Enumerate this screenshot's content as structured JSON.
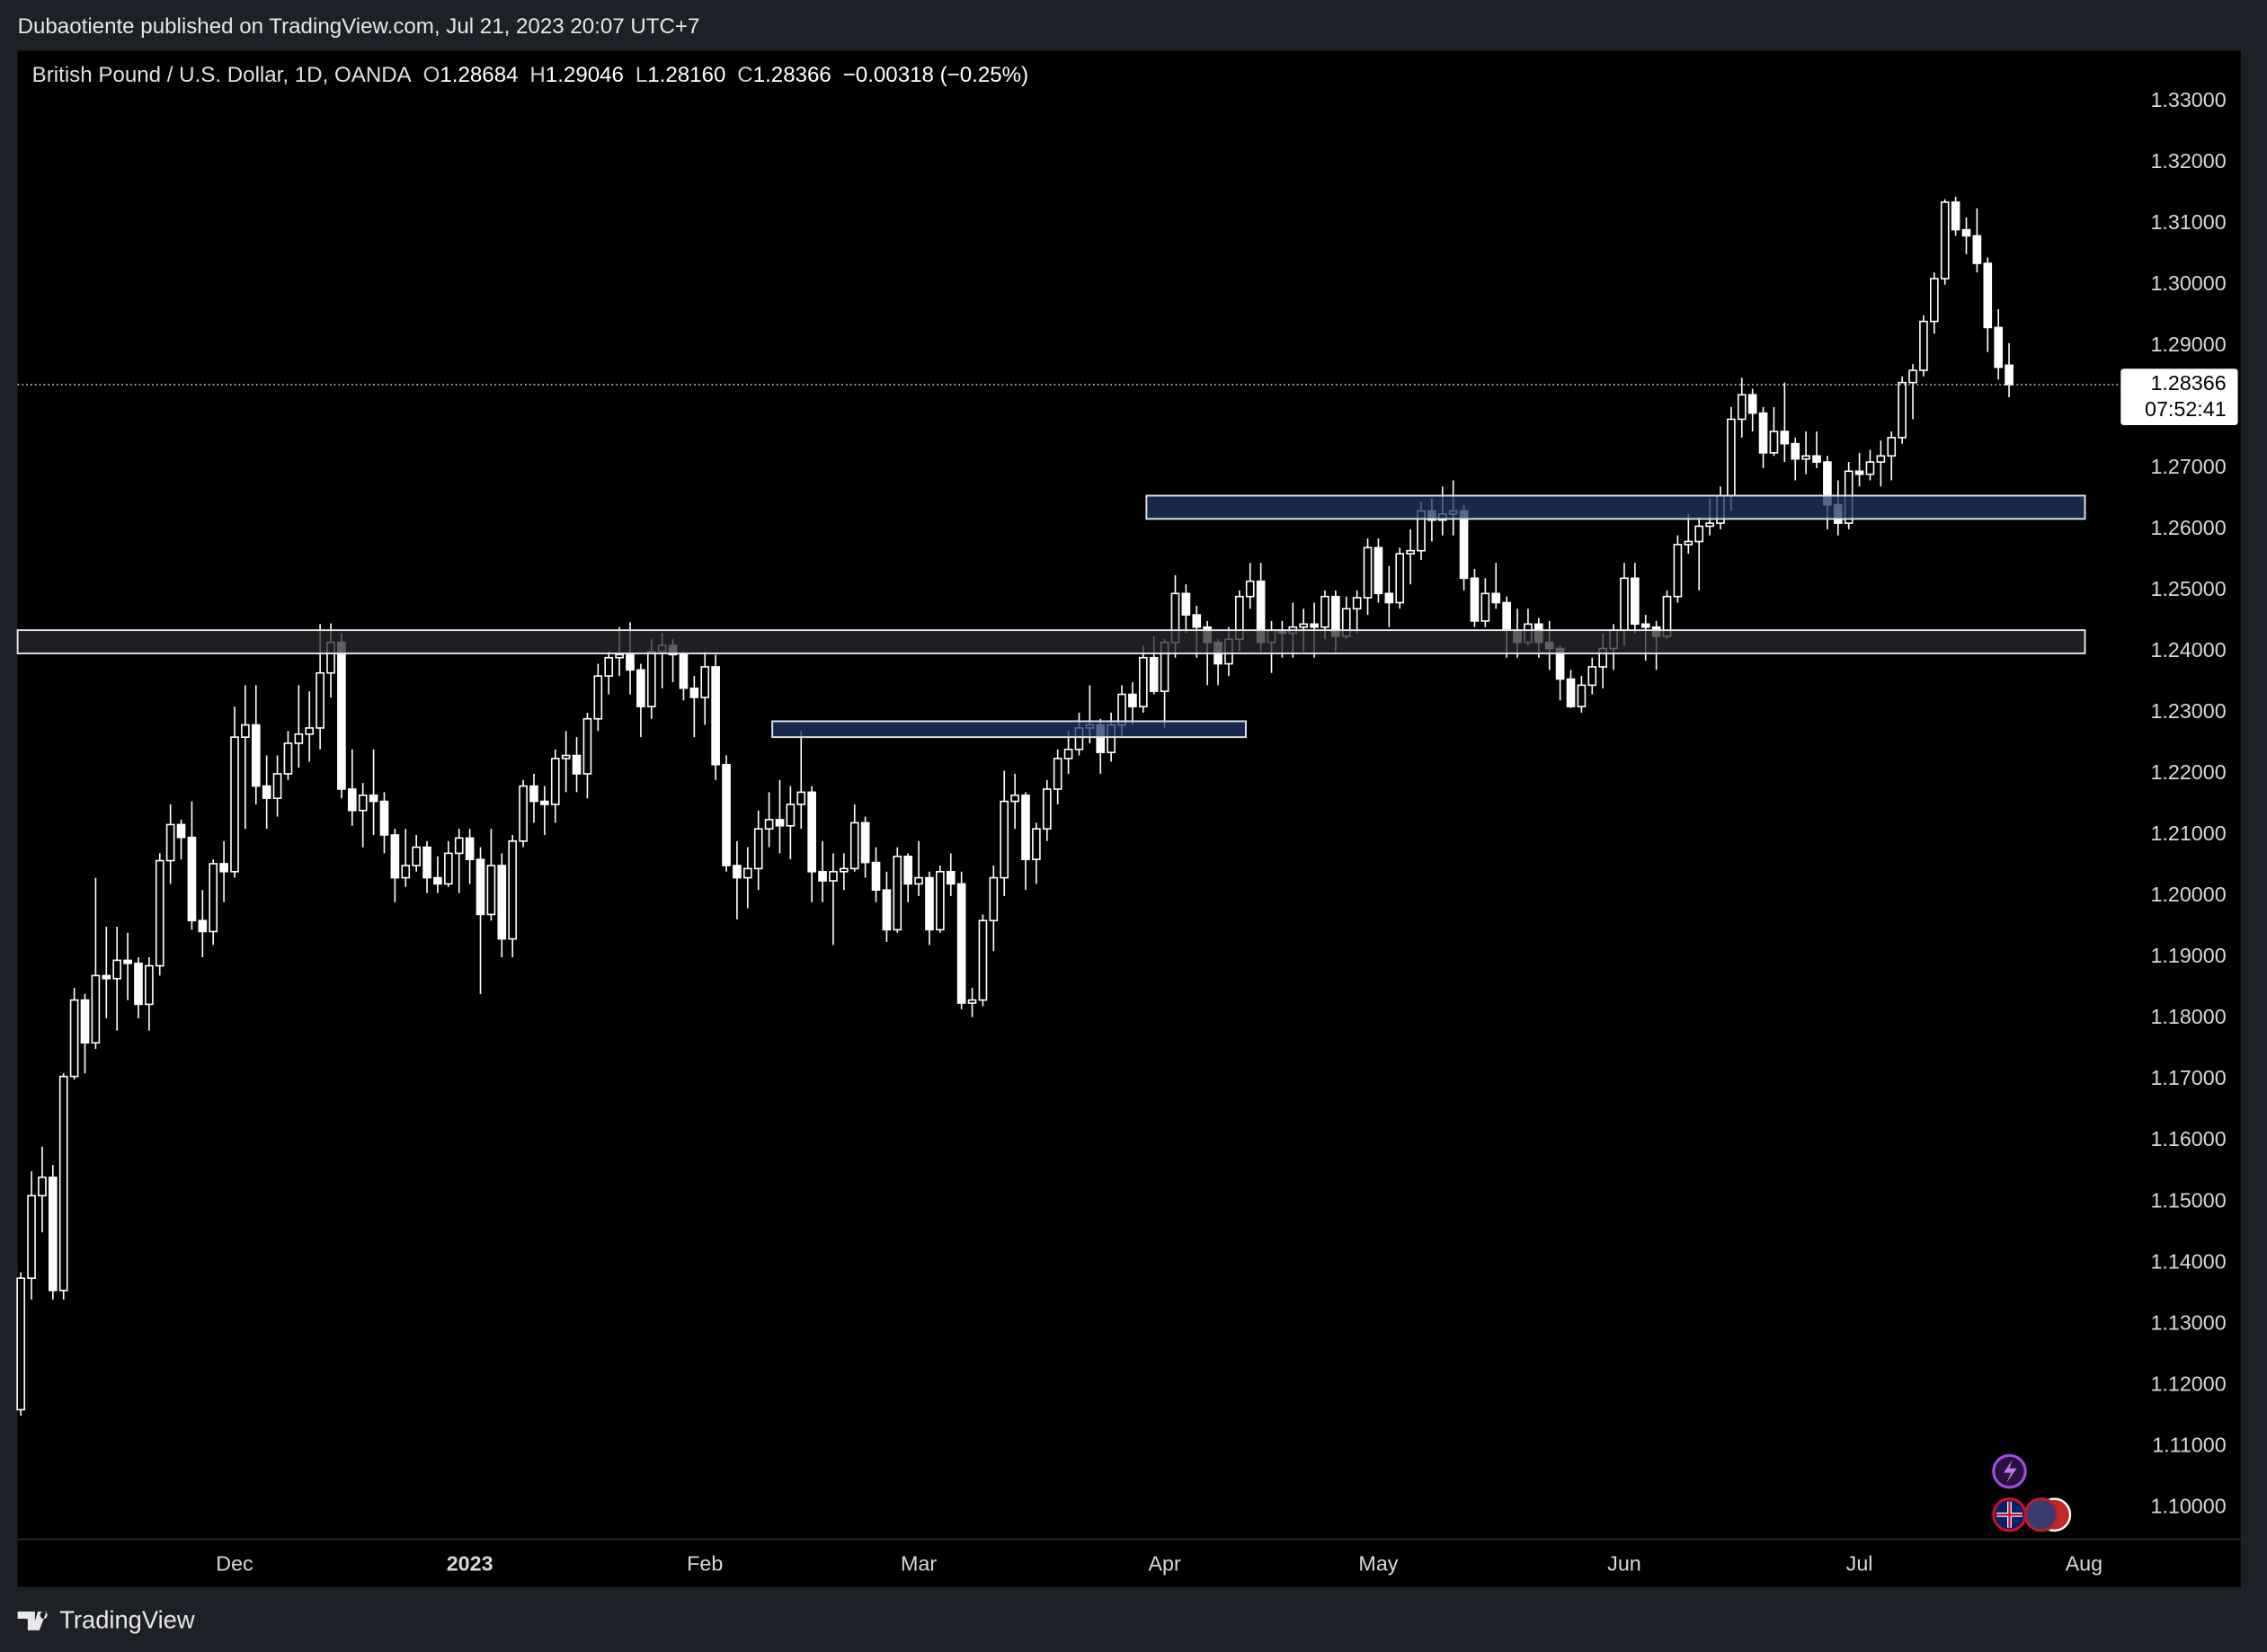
{
  "header": {
    "publisher": "Dubaotiente published on TradingView.com, Jul 21, 2023 20:07 UTC+7",
    "footer_brand": "TradingView"
  },
  "chart_data": {
    "type": "candlestick",
    "legend": {
      "instrument": "British Pound / U.S. Dollar, 1D, OANDA",
      "ohlc_labels": [
        "O",
        "H",
        "L",
        "C"
      ],
      "ohlc_values": [
        "1.28684",
        "1.29046",
        "1.28160",
        "1.28366"
      ],
      "change": "−0.00318 (−0.25%)"
    },
    "up_color": "#ffffff",
    "down_color": "#ffffff",
    "ohlc": [
      [
        1.116,
        1.1385,
        1.115,
        1.1375
      ],
      [
        1.1375,
        1.155,
        1.134,
        1.151
      ],
      [
        1.151,
        1.159,
        1.145,
        1.154
      ],
      [
        1.154,
        1.156,
        1.134,
        1.1355
      ],
      [
        1.1355,
        1.171,
        1.134,
        1.1705
      ],
      [
        1.1705,
        1.185,
        1.17,
        1.183
      ],
      [
        1.183,
        1.184,
        1.171,
        1.176
      ],
      [
        1.176,
        1.203,
        1.175,
        1.187
      ],
      [
        1.187,
        1.195,
        1.18,
        1.1865
      ],
      [
        1.1865,
        1.195,
        1.178,
        1.1895
      ],
      [
        1.1895,
        1.194,
        1.183,
        1.189
      ],
      [
        1.189,
        1.19,
        1.18,
        1.1823
      ],
      [
        1.1823,
        1.19,
        1.178,
        1.1886
      ],
      [
        1.1886,
        1.207,
        1.187,
        1.2058
      ],
      [
        1.2058,
        1.215,
        1.202,
        1.2117
      ],
      [
        1.2117,
        1.2125,
        1.206,
        1.2096
      ],
      [
        1.2096,
        1.2155,
        1.1945,
        1.196
      ],
      [
        1.196,
        1.201,
        1.19,
        1.1942
      ],
      [
        1.1942,
        1.206,
        1.192,
        1.2053
      ],
      [
        1.2053,
        1.209,
        1.199,
        1.204
      ],
      [
        1.204,
        1.231,
        1.203,
        1.226
      ],
      [
        1.226,
        1.2345,
        1.211,
        1.228
      ],
      [
        1.228,
        1.2345,
        1.215,
        1.218
      ],
      [
        1.218,
        1.223,
        1.211,
        1.216
      ],
      [
        1.216,
        1.223,
        1.213,
        1.22
      ],
      [
        1.22,
        1.227,
        1.219,
        1.225
      ],
      [
        1.225,
        1.2345,
        1.221,
        1.2265
      ],
      [
        1.2265,
        1.2335,
        1.222,
        1.2275
      ],
      [
        1.2275,
        1.2445,
        1.224,
        1.2365
      ],
      [
        1.2365,
        1.2446,
        1.2325,
        1.2415
      ],
      [
        1.2415,
        1.243,
        1.216,
        1.2175
      ],
      [
        1.2175,
        1.224,
        1.2115,
        1.214
      ],
      [
        1.214,
        1.2185,
        1.208,
        1.2165
      ],
      [
        1.2165,
        1.224,
        1.21,
        1.2155
      ],
      [
        1.2155,
        1.217,
        1.207,
        1.21
      ],
      [
        1.21,
        1.211,
        1.199,
        1.203
      ],
      [
        1.203,
        1.211,
        1.2015,
        1.205
      ],
      [
        1.205,
        1.21,
        1.204,
        1.208
      ],
      [
        1.208,
        1.209,
        1.2005,
        1.203
      ],
      [
        1.203,
        1.2065,
        1.2005,
        1.202
      ],
      [
        1.202,
        1.209,
        1.2015,
        1.207
      ],
      [
        1.207,
        1.211,
        1.2005,
        1.2095
      ],
      [
        1.2095,
        1.211,
        1.202,
        1.206
      ],
      [
        1.206,
        1.208,
        1.184,
        1.197
      ],
      [
        1.197,
        1.211,
        1.196,
        1.205
      ],
      [
        1.205,
        1.207,
        1.19,
        1.193
      ],
      [
        1.193,
        1.21,
        1.19,
        1.209
      ],
      [
        1.209,
        1.219,
        1.208,
        1.218
      ],
      [
        1.218,
        1.22,
        1.212,
        1.2155
      ],
      [
        1.2155,
        1.218,
        1.21,
        1.215
      ],
      [
        1.215,
        1.224,
        1.212,
        1.2225
      ],
      [
        1.2225,
        1.227,
        1.217,
        1.223
      ],
      [
        1.223,
        1.226,
        1.217,
        1.22
      ],
      [
        1.22,
        1.23,
        1.216,
        1.229
      ],
      [
        1.229,
        1.238,
        1.227,
        1.236
      ],
      [
        1.236,
        1.24,
        1.233,
        1.239
      ],
      [
        1.239,
        1.244,
        1.236,
        1.2395
      ],
      [
        1.2395,
        1.2448,
        1.233,
        1.237
      ],
      [
        1.237,
        1.238,
        1.226,
        1.231
      ],
      [
        1.231,
        1.242,
        1.229,
        1.24
      ],
      [
        1.24,
        1.243,
        1.234,
        1.241
      ],
      [
        1.241,
        1.242,
        1.235,
        1.2395
      ],
      [
        1.2395,
        1.24,
        1.232,
        1.234
      ],
      [
        1.234,
        1.236,
        1.226,
        1.2325
      ],
      [
        1.2325,
        1.24,
        1.228,
        1.2375
      ],
      [
        1.2375,
        1.2395,
        1.219,
        1.2215
      ],
      [
        1.2215,
        1.223,
        1.204,
        1.205
      ],
      [
        1.205,
        1.209,
        1.1962,
        1.203
      ],
      [
        1.203,
        1.208,
        1.198,
        1.2045
      ],
      [
        1.2045,
        1.214,
        1.201,
        1.211
      ],
      [
        1.211,
        1.217,
        1.208,
        1.2125
      ],
      [
        1.2125,
        1.219,
        1.207,
        1.2115
      ],
      [
        1.2115,
        1.218,
        1.206,
        1.215
      ],
      [
        1.215,
        1.227,
        1.211,
        1.217
      ],
      [
        1.217,
        1.218,
        1.199,
        1.204
      ],
      [
        1.204,
        1.209,
        1.199,
        1.2025
      ],
      [
        1.2025,
        1.207,
        1.192,
        1.204
      ],
      [
        1.204,
        1.207,
        1.201,
        1.2045
      ],
      [
        1.2045,
        1.215,
        1.204,
        1.212
      ],
      [
        1.212,
        1.213,
        1.203,
        1.2055
      ],
      [
        1.2055,
        1.208,
        1.199,
        1.201
      ],
      [
        1.201,
        1.204,
        1.1925,
        1.1945
      ],
      [
        1.1945,
        1.208,
        1.194,
        1.2065
      ],
      [
        1.2065,
        1.207,
        1.199,
        1.202
      ],
      [
        1.202,
        1.209,
        1.2,
        1.203
      ],
      [
        1.203,
        1.204,
        1.192,
        1.1945
      ],
      [
        1.1945,
        1.205,
        1.194,
        1.204
      ],
      [
        1.204,
        1.207,
        1.2,
        1.202
      ],
      [
        1.202,
        1.204,
        1.1815,
        1.1825
      ],
      [
        1.1825,
        1.185,
        1.1802,
        1.183
      ],
      [
        1.183,
        1.197,
        1.182,
        1.196
      ],
      [
        1.196,
        1.205,
        1.191,
        1.203
      ],
      [
        1.203,
        1.2205,
        1.2,
        1.2155
      ],
      [
        1.2155,
        1.22,
        1.211,
        1.2165
      ],
      [
        1.2165,
        1.217,
        1.201,
        1.206
      ],
      [
        1.206,
        1.212,
        1.202,
        1.211
      ],
      [
        1.211,
        1.219,
        1.209,
        1.2175
      ],
      [
        1.2175,
        1.224,
        1.215,
        1.2225
      ],
      [
        1.2225,
        1.227,
        1.22,
        1.224
      ],
      [
        1.224,
        1.23,
        1.223,
        1.2275
      ],
      [
        1.2275,
        1.2345,
        1.225,
        1.228
      ],
      [
        1.228,
        1.229,
        1.22,
        1.2235
      ],
      [
        1.2235,
        1.23,
        1.222,
        1.228
      ],
      [
        1.228,
        1.2345,
        1.226,
        1.233
      ],
      [
        1.233,
        1.235,
        1.228,
        1.231
      ],
      [
        1.231,
        1.241,
        1.23,
        1.239
      ],
      [
        1.239,
        1.2425,
        1.233,
        1.2335
      ],
      [
        1.2335,
        1.242,
        1.2275,
        1.2415
      ],
      [
        1.2415,
        1.2525,
        1.239,
        1.2495
      ],
      [
        1.2495,
        1.251,
        1.243,
        1.246
      ],
      [
        1.246,
        1.2475,
        1.239,
        1.244
      ],
      [
        1.244,
        1.245,
        1.2345,
        1.2415
      ],
      [
        1.2415,
        1.242,
        1.2345,
        1.238
      ],
      [
        1.238,
        1.244,
        1.236,
        1.242
      ],
      [
        1.242,
        1.25,
        1.24,
        1.249
      ],
      [
        1.249,
        1.2545,
        1.247,
        1.2515
      ],
      [
        1.2515,
        1.2545,
        1.24,
        1.2415
      ],
      [
        1.2415,
        1.245,
        1.2365,
        1.2435
      ],
      [
        1.2435,
        1.245,
        1.239,
        1.243
      ],
      [
        1.243,
        1.248,
        1.239,
        1.244
      ],
      [
        1.244,
        1.247,
        1.24,
        1.2445
      ],
      [
        1.2445,
        1.248,
        1.239,
        1.244
      ],
      [
        1.244,
        1.25,
        1.242,
        1.249
      ],
      [
        1.249,
        1.25,
        1.24,
        1.2425
      ],
      [
        1.2425,
        1.249,
        1.242,
        1.247
      ],
      [
        1.247,
        1.25,
        1.243,
        1.2488
      ],
      [
        1.2488,
        1.2585,
        1.246,
        1.257
      ],
      [
        1.257,
        1.2585,
        1.248,
        1.2495
      ],
      [
        1.2495,
        1.254,
        1.244,
        1.248
      ],
      [
        1.248,
        1.257,
        1.247,
        1.256
      ],
      [
        1.256,
        1.26,
        1.251,
        1.2565
      ],
      [
        1.2565,
        1.2645,
        1.255,
        1.263
      ],
      [
        1.263,
        1.265,
        1.258,
        1.2615
      ],
      [
        1.2615,
        1.267,
        1.259,
        1.2625
      ],
      [
        1.2625,
        1.268,
        1.259,
        1.263
      ],
      [
        1.263,
        1.264,
        1.25,
        1.252
      ],
      [
        1.252,
        1.2535,
        1.244,
        1.245
      ],
      [
        1.245,
        1.252,
        1.244,
        1.2495
      ],
      [
        1.2495,
        1.2545,
        1.247,
        1.248
      ],
      [
        1.248,
        1.249,
        1.239,
        1.2435
      ],
      [
        1.2435,
        1.247,
        1.239,
        1.2415
      ],
      [
        1.2415,
        1.247,
        1.241,
        1.2445
      ],
      [
        1.2445,
        1.2455,
        1.239,
        1.2415
      ],
      [
        1.2415,
        1.245,
        1.237,
        1.2405
      ],
      [
        1.2405,
        1.241,
        1.232,
        1.2355
      ],
      [
        1.2355,
        1.237,
        1.2308,
        1.231
      ],
      [
        1.231,
        1.236,
        1.23,
        1.2345
      ],
      [
        1.2345,
        1.239,
        1.233,
        1.2375
      ],
      [
        1.2375,
        1.243,
        1.234,
        1.2405
      ],
      [
        1.2405,
        1.2445,
        1.237,
        1.2435
      ],
      [
        1.2435,
        1.2545,
        1.241,
        1.252
      ],
      [
        1.252,
        1.2545,
        1.243,
        1.2445
      ],
      [
        1.2445,
        1.246,
        1.2385,
        1.244
      ],
      [
        1.244,
        1.245,
        1.237,
        1.2425
      ],
      [
        1.2425,
        1.25,
        1.242,
        1.249
      ],
      [
        1.249,
        1.259,
        1.248,
        1.2575
      ],
      [
        1.2575,
        1.2625,
        1.256,
        1.258
      ],
      [
        1.258,
        1.262,
        1.25,
        1.2605
      ],
      [
        1.2605,
        1.265,
        1.259,
        1.261
      ],
      [
        1.261,
        1.267,
        1.26,
        1.2655
      ],
      [
        1.2655,
        1.28,
        1.263,
        1.278
      ],
      [
        1.278,
        1.2848,
        1.275,
        1.282
      ],
      [
        1.282,
        1.283,
        1.276,
        1.279
      ],
      [
        1.279,
        1.28,
        1.27,
        1.2725
      ],
      [
        1.2725,
        1.28,
        1.272,
        1.276
      ],
      [
        1.276,
        1.284,
        1.271,
        1.274
      ],
      [
        1.274,
        1.275,
        1.268,
        1.2715
      ],
      [
        1.2715,
        1.276,
        1.269,
        1.272
      ],
      [
        1.272,
        1.276,
        1.27,
        1.271
      ],
      [
        1.271,
        1.272,
        1.26,
        1.264
      ],
      [
        1.264,
        1.268,
        1.259,
        1.261
      ],
      [
        1.261,
        1.271,
        1.26,
        1.2695
      ],
      [
        1.2695,
        1.2725,
        1.267,
        1.269
      ],
      [
        1.269,
        1.273,
        1.268,
        1.271
      ],
      [
        1.271,
        1.2745,
        1.267,
        1.272
      ],
      [
        1.272,
        1.276,
        1.268,
        1.275
      ],
      [
        1.275,
        1.285,
        1.274,
        1.284
      ],
      [
        1.284,
        1.287,
        1.278,
        1.286
      ],
      [
        1.286,
        1.295,
        1.285,
        1.294
      ],
      [
        1.294,
        1.302,
        1.292,
        1.301
      ],
      [
        1.301,
        1.314,
        1.3,
        1.3135
      ],
      [
        1.3135,
        1.3144,
        1.308,
        1.309
      ],
      [
        1.309,
        1.311,
        1.305,
        1.308
      ],
      [
        1.308,
        1.3125,
        1.302,
        1.3035
      ],
      [
        1.3035,
        1.3045,
        1.289,
        1.293
      ],
      [
        1.293,
        1.296,
        1.2845,
        1.2865
      ],
      [
        1.28684,
        1.29046,
        1.2816,
        1.28366
      ]
    ],
    "xlim": [
      -0.3,
      195.5
    ],
    "xticks": [
      {
        "value": 20,
        "label": "Dec"
      },
      {
        "value": 42,
        "label": "2023"
      },
      {
        "value": 64,
        "label": "Feb"
      },
      {
        "value": 84,
        "label": "Mar"
      },
      {
        "value": 107,
        "label": "Apr"
      },
      {
        "value": 127,
        "label": "May"
      },
      {
        "value": 150,
        "label": "Jun"
      },
      {
        "value": 172,
        "label": "Jul"
      },
      {
        "value": 193,
        "label": "Aug"
      }
    ],
    "ylim": [
      1.0948,
      1.3383
    ],
    "yticks": [
      {
        "value": 1.33,
        "label": "1.33000"
      },
      {
        "value": 1.32,
        "label": "1.32000"
      },
      {
        "value": 1.31,
        "label": "1.31000"
      },
      {
        "value": 1.3,
        "label": "1.30000"
      },
      {
        "value": 1.29,
        "label": "1.29000"
      },
      {
        "value": 1.28,
        "label": "1.28000"
      },
      {
        "value": 1.27,
        "label": "1.27000"
      },
      {
        "value": 1.26,
        "label": "1.26000"
      },
      {
        "value": 1.25,
        "label": "1.25000"
      },
      {
        "value": 1.24,
        "label": "1.24000"
      },
      {
        "value": 1.23,
        "label": "1.23000"
      },
      {
        "value": 1.22,
        "label": "1.22000"
      },
      {
        "value": 1.21,
        "label": "1.21000"
      },
      {
        "value": 1.2,
        "label": "1.20000"
      },
      {
        "value": 1.19,
        "label": "1.19000"
      },
      {
        "value": 1.18,
        "label": "1.18000"
      },
      {
        "value": 1.17,
        "label": "1.17000"
      },
      {
        "value": 1.16,
        "label": "1.16000"
      },
      {
        "value": 1.15,
        "label": "1.15000"
      },
      {
        "value": 1.14,
        "label": "1.14000"
      },
      {
        "value": 1.13,
        "label": "1.13000"
      },
      {
        "value": 1.12,
        "label": "1.12000"
      },
      {
        "value": 1.11,
        "label": "1.11000"
      },
      {
        "value": 1.1,
        "label": "1.10000"
      }
    ],
    "grid": false,
    "last_price": 1.28366,
    "countdown": "07:52:41",
    "zones": [
      {
        "x": [
          105.3,
          193.1
        ],
        "y": [
          1.2617,
          1.2655
        ],
        "color": "#1f3563"
      },
      {
        "x": [
          -0.3,
          193.1
        ],
        "y": [
          1.2397,
          1.2435
        ],
        "color": "#2a2a2e"
      },
      {
        "x": [
          70.3,
          114.6
        ],
        "y": [
          1.226,
          1.2286
        ],
        "color": "#1f3563"
      }
    ]
  }
}
